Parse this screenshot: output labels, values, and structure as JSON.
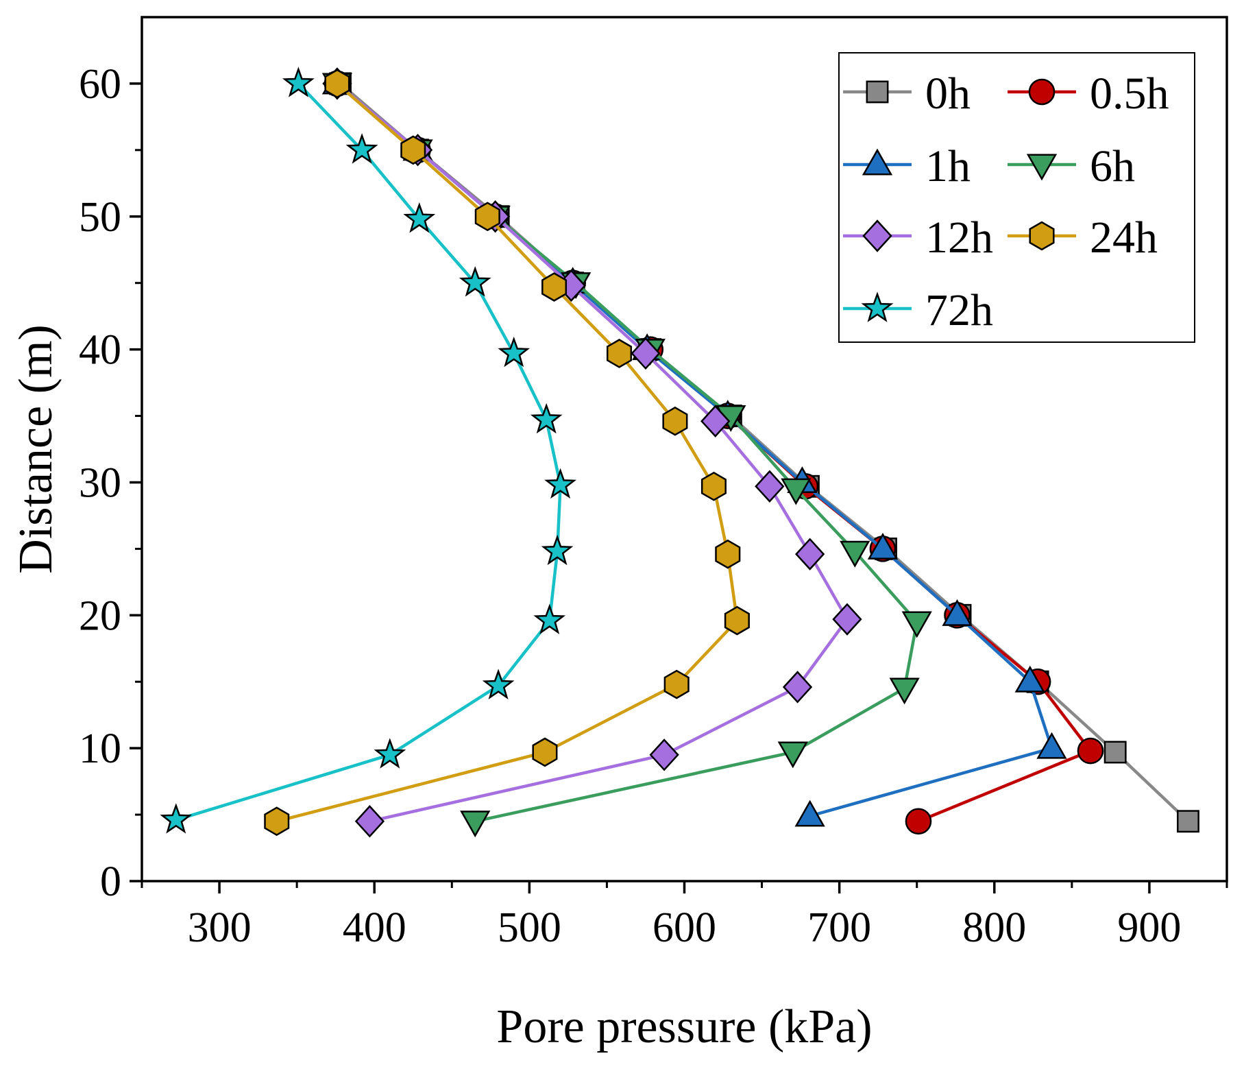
{
  "chart_data": {
    "type": "line",
    "xlabel": "Pore pressure (kPa)",
    "ylabel": "Distance (m)",
    "xlim": [
      250,
      950
    ],
    "ylim": [
      0,
      65
    ],
    "xticks": [
      300,
      400,
      500,
      600,
      700,
      800,
      900
    ],
    "xticks_minor": [
      250,
      350,
      450,
      550,
      650,
      750,
      850,
      950
    ],
    "yticks": [
      0,
      10,
      20,
      30,
      40,
      50,
      60
    ],
    "yticks_minor": [
      5,
      15,
      25,
      35,
      45,
      55
    ],
    "grid": false,
    "legend_position": "top-right",
    "series": [
      {
        "name": "0h",
        "color": "#888888",
        "marker": "square",
        "x": [
          925,
          878,
          828,
          778,
          730,
          680,
          630,
          578,
          528,
          480,
          428,
          378
        ],
        "y": [
          4.5,
          9.7,
          15,
          20,
          25,
          29.7,
          35,
          40,
          45,
          50,
          55,
          60
        ]
      },
      {
        "name": "0.5h",
        "color": "#c00000",
        "marker": "circle",
        "x": [
          751,
          862,
          828,
          776,
          728,
          678,
          628,
          578,
          528,
          478,
          428,
          376
        ],
        "y": [
          4.5,
          9.8,
          15,
          20,
          25,
          29.7,
          35,
          40,
          45,
          50,
          55,
          60
        ]
      },
      {
        "name": "1h",
        "color": "#1f6fc0",
        "marker": "triangle-up",
        "x": [
          681,
          837,
          823,
          776,
          728,
          676,
          628,
          576,
          528,
          478,
          428,
          376
        ],
        "y": [
          4.9,
          10,
          15,
          20,
          25,
          30,
          35,
          40,
          45,
          50,
          55,
          60
        ]
      },
      {
        "name": "6h",
        "color": "#3a9d5d",
        "marker": "triangle-down",
        "x": [
          465,
          670,
          742,
          750,
          710,
          672,
          630,
          578,
          530,
          478,
          428,
          376
        ],
        "y": [
          4.5,
          9.7,
          14.5,
          19.5,
          24.8,
          29.5,
          35,
          40,
          45,
          50,
          55,
          60
        ]
      },
      {
        "name": "12h",
        "color": "#a66fe0",
        "marker": "diamond",
        "x": [
          397,
          587,
          673,
          705,
          681,
          655,
          620,
          575,
          527,
          478,
          428,
          376
        ],
        "y": [
          4.5,
          9.5,
          14.6,
          19.7,
          24.6,
          29.7,
          34.6,
          39.7,
          44.8,
          50,
          55,
          60
        ]
      },
      {
        "name": "24h",
        "color": "#d19d12",
        "marker": "hexagon",
        "x": [
          337,
          510,
          595,
          634,
          628,
          619,
          594,
          558,
          516,
          473,
          425,
          376
        ],
        "y": [
          4.5,
          9.7,
          14.8,
          19.6,
          24.6,
          29.7,
          34.6,
          39.7,
          44.7,
          50,
          55,
          60
        ]
      },
      {
        "name": "72h",
        "color": "#17c1c7",
        "marker": "star",
        "x": [
          272,
          410,
          480,
          513,
          518,
          520,
          511,
          490,
          465,
          429,
          392,
          351
        ],
        "y": [
          4.6,
          9.5,
          14.7,
          19.6,
          24.8,
          29.8,
          34.7,
          39.7,
          45,
          49.8,
          55,
          60
        ]
      }
    ]
  }
}
